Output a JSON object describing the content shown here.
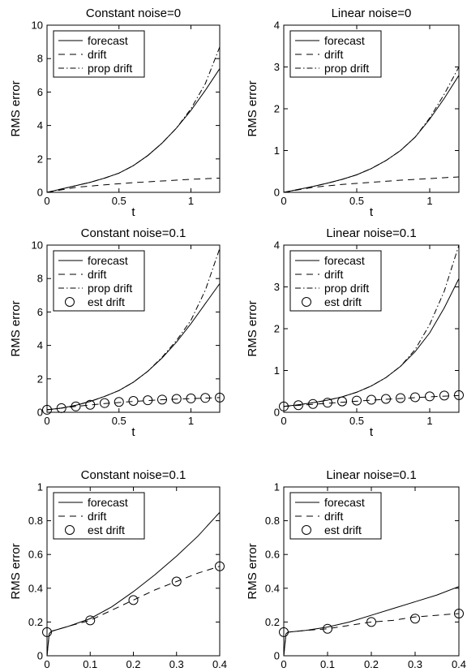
{
  "chart_data": [
    {
      "type": "line",
      "title": "Constant noise=0",
      "xlabel": "t",
      "ylabel": "RMS error",
      "xlim": [
        0,
        1.2
      ],
      "ylim": [
        0,
        10
      ],
      "xticks": [
        0,
        0.5,
        1
      ],
      "xtick_labels": [
        "0",
        "0.5",
        "1"
      ],
      "yticks": [
        0,
        2,
        4,
        6,
        8,
        10
      ],
      "ytick_labels": [
        "0",
        "2",
        "4",
        "6",
        "8",
        "10"
      ],
      "grid": false,
      "legend": "top-left",
      "series": [
        {
          "name": "forecast",
          "style": "solid",
          "x": [
            0,
            0.1,
            0.2,
            0.3,
            0.4,
            0.5,
            0.6,
            0.7,
            0.8,
            0.9,
            1.0,
            1.1,
            1.2
          ],
          "y": [
            0,
            0.2,
            0.4,
            0.6,
            0.85,
            1.15,
            1.6,
            2.2,
            2.95,
            3.85,
            4.9,
            6.1,
            7.4
          ]
        },
        {
          "name": "drift",
          "style": "dashed",
          "x": [
            0,
            0.2,
            0.4,
            0.6,
            0.8,
            1.0,
            1.2
          ],
          "y": [
            0,
            0.3,
            0.45,
            0.58,
            0.68,
            0.78,
            0.85
          ]
        },
        {
          "name": "prop drift",
          "style": "dashdot",
          "x": [
            0,
            0.1,
            0.2,
            0.3,
            0.4,
            0.5,
            0.6,
            0.7,
            0.8,
            0.9,
            1.0,
            1.1,
            1.2
          ],
          "y": [
            0,
            0.2,
            0.4,
            0.6,
            0.85,
            1.15,
            1.6,
            2.2,
            2.95,
            3.85,
            5.0,
            6.5,
            8.7
          ]
        }
      ]
    },
    {
      "type": "line",
      "title": "Linear noise=0",
      "xlabel": "t",
      "ylabel": "RMS error",
      "xlim": [
        0,
        1.2
      ],
      "ylim": [
        0,
        4
      ],
      "xticks": [
        0,
        0.5,
        1
      ],
      "xtick_labels": [
        "0",
        "0.5",
        "1"
      ],
      "yticks": [
        0,
        1,
        2,
        3,
        4
      ],
      "ytick_labels": [
        "0",
        "1",
        "2",
        "3",
        "4"
      ],
      "grid": false,
      "legend": "top-left",
      "series": [
        {
          "name": "forecast",
          "style": "solid",
          "x": [
            0,
            0.1,
            0.2,
            0.3,
            0.4,
            0.5,
            0.6,
            0.7,
            0.8,
            0.9,
            1.0,
            1.1,
            1.2
          ],
          "y": [
            0,
            0.07,
            0.14,
            0.22,
            0.31,
            0.42,
            0.57,
            0.76,
            1.0,
            1.32,
            1.75,
            2.25,
            2.8
          ]
        },
        {
          "name": "drift",
          "style": "dashed",
          "x": [
            0,
            0.2,
            0.4,
            0.6,
            0.8,
            1.0,
            1.2
          ],
          "y": [
            0,
            0.12,
            0.19,
            0.24,
            0.29,
            0.33,
            0.37
          ]
        },
        {
          "name": "prop drift",
          "style": "dashdot",
          "x": [
            0,
            0.1,
            0.2,
            0.3,
            0.4,
            0.5,
            0.6,
            0.7,
            0.8,
            0.9,
            1.0,
            1.1,
            1.2
          ],
          "y": [
            0,
            0.07,
            0.14,
            0.22,
            0.31,
            0.42,
            0.57,
            0.76,
            1.0,
            1.32,
            1.78,
            2.35,
            3.0
          ]
        }
      ]
    },
    {
      "type": "line",
      "title": "Constant noise=0.1",
      "xlabel": "t",
      "ylabel": "RMS error",
      "xlim": [
        0,
        1.2
      ],
      "ylim": [
        0,
        10
      ],
      "xticks": [
        0,
        0.5,
        1
      ],
      "xtick_labels": [
        "0",
        "0.5",
        "1"
      ],
      "yticks": [
        0,
        2,
        4,
        6,
        8,
        10
      ],
      "ytick_labels": [
        "0",
        "2",
        "4",
        "6",
        "8",
        "10"
      ],
      "grid": false,
      "legend": "top-left",
      "series": [
        {
          "name": "forecast",
          "style": "solid",
          "x": [
            0,
            0.1,
            0.2,
            0.3,
            0.4,
            0.5,
            0.6,
            0.7,
            0.8,
            0.9,
            1.0,
            1.1,
            1.2
          ],
          "y": [
            0.15,
            0.25,
            0.42,
            0.65,
            0.95,
            1.3,
            1.8,
            2.45,
            3.25,
            4.2,
            5.3,
            6.5,
            7.7
          ]
        },
        {
          "name": "drift",
          "style": "dashed",
          "x": [
            0,
            0.2,
            0.4,
            0.6,
            0.8,
            1.0,
            1.2
          ],
          "y": [
            0.15,
            0.35,
            0.52,
            0.65,
            0.75,
            0.82,
            0.88
          ]
        },
        {
          "name": "prop drift",
          "style": "dashdot",
          "x": [
            0,
            0.1,
            0.2,
            0.3,
            0.4,
            0.5,
            0.6,
            0.7,
            0.8,
            0.9,
            1.0,
            1.1,
            1.2
          ],
          "y": [
            0.15,
            0.25,
            0.42,
            0.65,
            0.95,
            1.3,
            1.8,
            2.45,
            3.3,
            4.3,
            5.5,
            7.3,
            9.8
          ]
        },
        {
          "name": "est drift",
          "style": "circles",
          "x": [
            0,
            0.1,
            0.2,
            0.3,
            0.4,
            0.5,
            0.6,
            0.7,
            0.8,
            0.9,
            1.0,
            1.1,
            1.2
          ],
          "y": [
            0.15,
            0.25,
            0.35,
            0.45,
            0.55,
            0.62,
            0.68,
            0.72,
            0.76,
            0.8,
            0.83,
            0.86,
            0.88
          ]
        }
      ]
    },
    {
      "type": "line",
      "title": "Linear noise=0.1",
      "xlabel": "t",
      "ylabel": "RMS error",
      "xlim": [
        0,
        1.2
      ],
      "ylim": [
        0,
        4
      ],
      "xticks": [
        0,
        0.5,
        1
      ],
      "xtick_labels": [
        "0",
        "0.5",
        "1"
      ],
      "yticks": [
        0,
        1,
        2,
        3,
        4
      ],
      "ytick_labels": [
        "0",
        "1",
        "2",
        "3",
        "4"
      ],
      "grid": false,
      "legend": "top-left",
      "series": [
        {
          "name": "forecast",
          "style": "solid",
          "x": [
            0,
            0.1,
            0.2,
            0.3,
            0.4,
            0.5,
            0.6,
            0.7,
            0.8,
            0.9,
            1.0,
            1.1,
            1.2
          ],
          "y": [
            0.14,
            0.18,
            0.23,
            0.29,
            0.37,
            0.48,
            0.63,
            0.83,
            1.1,
            1.45,
            1.9,
            2.5,
            3.2
          ]
        },
        {
          "name": "drift",
          "style": "dashed",
          "x": [
            0,
            0.2,
            0.4,
            0.6,
            0.8,
            1.0,
            1.2
          ],
          "y": [
            0.14,
            0.19,
            0.24,
            0.29,
            0.33,
            0.37,
            0.4
          ]
        },
        {
          "name": "prop drift",
          "style": "dashdot",
          "x": [
            0,
            0.1,
            0.2,
            0.3,
            0.4,
            0.5,
            0.6,
            0.7,
            0.8,
            0.9,
            1.0,
            1.1,
            1.2
          ],
          "y": [
            0.14,
            0.18,
            0.23,
            0.29,
            0.37,
            0.48,
            0.63,
            0.83,
            1.1,
            1.5,
            2.1,
            2.9,
            4.0
          ]
        },
        {
          "name": "est drift",
          "style": "circles",
          "x": [
            0,
            0.1,
            0.2,
            0.3,
            0.4,
            0.5,
            0.6,
            0.7,
            0.8,
            0.9,
            1.0,
            1.1,
            1.2
          ],
          "y": [
            0.14,
            0.17,
            0.2,
            0.23,
            0.26,
            0.28,
            0.3,
            0.32,
            0.34,
            0.36,
            0.38,
            0.4,
            0.41
          ]
        }
      ]
    },
    {
      "type": "line",
      "title": "Constant noise=0.1",
      "xlabel": "t",
      "ylabel": "RMS error",
      "xlim": [
        0,
        0.4
      ],
      "ylim": [
        0,
        1
      ],
      "xticks": [
        0,
        0.1,
        0.2,
        0.3,
        0.4
      ],
      "xtick_labels": [
        "0",
        "0.1",
        "0.2",
        "0.3",
        "0.4"
      ],
      "yticks": [
        0,
        0.2,
        0.4,
        0.6,
        0.8,
        1
      ],
      "ytick_labels": [
        "0",
        "0.2",
        "0.4",
        "0.6",
        "0.8",
        "1"
      ],
      "grid": false,
      "legend": "top-left",
      "series": [
        {
          "name": "forecast",
          "style": "solid",
          "x": [
            0,
            0.005,
            0.01,
            0.05,
            0.1,
            0.15,
            0.2,
            0.25,
            0.3,
            0.35,
            0.4
          ],
          "y": [
            0.0,
            0.13,
            0.145,
            0.175,
            0.22,
            0.29,
            0.38,
            0.48,
            0.59,
            0.71,
            0.85
          ]
        },
        {
          "name": "drift",
          "style": "dashed",
          "x": [
            0,
            0.005,
            0.01,
            0.05,
            0.1,
            0.15,
            0.2,
            0.25,
            0.3,
            0.35,
            0.4
          ],
          "y": [
            0.0,
            0.13,
            0.145,
            0.175,
            0.21,
            0.27,
            0.33,
            0.39,
            0.44,
            0.49,
            0.53
          ]
        },
        {
          "name": "est drift",
          "style": "circles",
          "x": [
            0,
            0.1,
            0.2,
            0.3,
            0.4
          ],
          "y": [
            0.14,
            0.21,
            0.33,
            0.44,
            0.53
          ]
        }
      ]
    },
    {
      "type": "line",
      "title": "Linear noise=0.1",
      "xlabel": "t",
      "ylabel": "RMS error",
      "xlim": [
        0,
        0.4
      ],
      "ylim": [
        0,
        1
      ],
      "xticks": [
        0,
        0.1,
        0.2,
        0.3,
        0.4
      ],
      "xtick_labels": [
        "0",
        "0.1",
        "0.2",
        "0.3",
        "0.4"
      ],
      "yticks": [
        0,
        0.2,
        0.4,
        0.6,
        0.8,
        1
      ],
      "ytick_labels": [
        "0",
        "0.2",
        "0.4",
        "0.6",
        "0.8",
        "1"
      ],
      "grid": false,
      "legend": "top-left",
      "series": [
        {
          "name": "forecast",
          "style": "solid",
          "x": [
            0,
            0.005,
            0.01,
            0.05,
            0.1,
            0.15,
            0.2,
            0.25,
            0.3,
            0.35,
            0.4
          ],
          "y": [
            0.0,
            0.13,
            0.14,
            0.15,
            0.17,
            0.2,
            0.24,
            0.28,
            0.32,
            0.36,
            0.41
          ]
        },
        {
          "name": "drift",
          "style": "dashed",
          "x": [
            0,
            0.005,
            0.01,
            0.05,
            0.1,
            0.15,
            0.2,
            0.25,
            0.3,
            0.35,
            0.4
          ],
          "y": [
            0.0,
            0.13,
            0.14,
            0.15,
            0.16,
            0.18,
            0.2,
            0.21,
            0.23,
            0.24,
            0.25
          ]
        },
        {
          "name": "est drift",
          "style": "circles",
          "x": [
            0,
            0.1,
            0.2,
            0.3,
            0.4
          ],
          "y": [
            0.14,
            0.16,
            0.2,
            0.22,
            0.25
          ]
        }
      ]
    }
  ]
}
